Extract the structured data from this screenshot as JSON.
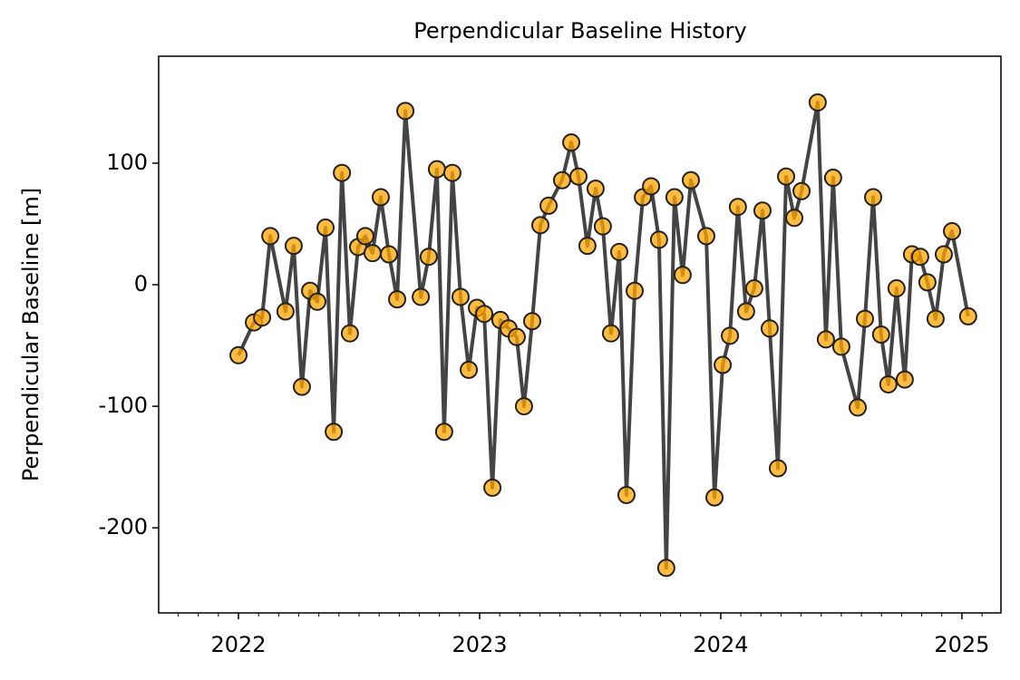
{
  "chart_data": {
    "type": "line",
    "title": "Perpendicular Baseline History",
    "y_label": "Perpendicular Baseline [m]",
    "x": [
      2022.0,
      2022.064,
      2022.098,
      2022.132,
      2022.195,
      2022.229,
      2022.263,
      2022.297,
      2022.327,
      2022.361,
      2022.395,
      2022.429,
      2022.462,
      2022.496,
      2022.526,
      2022.556,
      2022.59,
      2022.624,
      2022.658,
      2022.692,
      2022.756,
      2022.789,
      2022.823,
      2022.853,
      2022.887,
      2022.921,
      2022.955,
      2022.989,
      2023.019,
      2023.053,
      2023.086,
      2023.12,
      2023.154,
      2023.184,
      2023.218,
      2023.252,
      2023.286,
      2023.342,
      2023.38,
      2023.41,
      2023.447,
      2023.481,
      2023.511,
      2023.545,
      2023.579,
      2023.609,
      2023.643,
      2023.677,
      2023.711,
      2023.744,
      2023.774,
      2023.808,
      2023.842,
      2023.876,
      2023.94,
      2023.974,
      2024.008,
      2024.038,
      2024.071,
      2024.105,
      2024.139,
      2024.173,
      2024.203,
      2024.237,
      2024.271,
      2024.305,
      2024.335,
      2024.402,
      2024.436,
      2024.466,
      2024.5,
      2024.568,
      2024.598,
      2024.632,
      2024.665,
      2024.695,
      2024.729,
      2024.763,
      2024.793,
      2024.827,
      2024.857,
      2024.891,
      2024.925,
      2024.959,
      2025.026
    ],
    "series": [
      {
        "name": "Perpendicular Baseline",
        "color": "#444444",
        "marker_color": "#ffa500",
        "values": [
          -58,
          -31,
          -27,
          40,
          -22,
          32,
          -84,
          -5,
          -14,
          47,
          -121,
          92,
          -40,
          31,
          40,
          26,
          72,
          25,
          -12,
          143,
          -10,
          23,
          95,
          -121,
          92,
          -10,
          -70,
          -19,
          -24,
          -167,
          -29,
          -36,
          -43,
          -100,
          -30,
          49,
          65,
          86,
          117,
          89,
          32,
          79,
          48,
          -40,
          27,
          -173,
          -5,
          72,
          81,
          37,
          -233,
          72,
          8,
          86,
          40,
          -175,
          -66,
          -42,
          64,
          -22,
          -3,
          61,
          -36,
          -151,
          89,
          55,
          77,
          150,
          -45,
          88,
          -51,
          -101,
          -28,
          72,
          -41,
          -82,
          -3,
          -78,
          25,
          23,
          2,
          -28,
          25,
          44,
          -26
        ]
      }
    ],
    "xlim": [
      2021.669,
      2025.162
    ],
    "xticks": [
      2022,
      2023,
      2024,
      2025
    ],
    "ylim": [
      -270,
      188
    ],
    "yticks": [
      -200,
      -100,
      0,
      100
    ],
    "grid": false
  }
}
